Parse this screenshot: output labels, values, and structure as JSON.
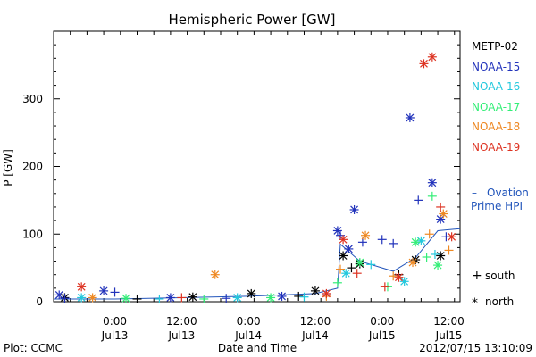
{
  "chart_data": {
    "type": "scatter",
    "title": "Hemispheric Power [GW]",
    "xlabel": "Date and Time",
    "ylabel": "P [GW]",
    "ylim": [
      0,
      400
    ],
    "xlim": [
      "2012-07-12 13:00",
      "2012-07-15 14:00"
    ],
    "y_ticks": [
      0,
      100,
      200,
      300
    ],
    "x_ticks": [
      {
        "time": "2012-07-13 00:00",
        "label1": "0:00",
        "label2": "Jul13"
      },
      {
        "time": "2012-07-13 12:00",
        "label1": "12:00",
        "label2": "Jul13"
      },
      {
        "time": "2012-07-14 00:00",
        "label1": "0:00",
        "label2": "Jul14"
      },
      {
        "time": "2012-07-14 12:00",
        "label1": "12:00",
        "label2": "Jul14"
      },
      {
        "time": "2012-07-15 00:00",
        "label1": "0:00",
        "label2": "Jul15"
      },
      {
        "time": "2012-07-15 12:00",
        "label1": "12:00",
        "label2": "Jul15"
      }
    ],
    "grid": false,
    "legend_position": "right",
    "series": [
      {
        "name": "METP-02",
        "color": "#000000",
        "points": [
          {
            "t": "2012-07-12 15:00",
            "y": 6,
            "h": "north"
          },
          {
            "t": "2012-07-13 04:00",
            "y": 4,
            "h": "south"
          },
          {
            "t": "2012-07-13 14:00",
            "y": 7,
            "h": "north"
          },
          {
            "t": "2012-07-14 00:30",
            "y": 12,
            "h": "north"
          },
          {
            "t": "2012-07-14 09:00",
            "y": 8,
            "h": "south"
          },
          {
            "t": "2012-07-14 12:00",
            "y": 16,
            "h": "north"
          },
          {
            "t": "2012-07-14 17:00",
            "y": 68,
            "h": "north"
          },
          {
            "t": "2012-07-14 18:30",
            "y": 50,
            "h": "south"
          },
          {
            "t": "2012-07-14 20:00",
            "y": 56,
            "h": "north"
          },
          {
            "t": "2012-07-15 03:00",
            "y": 40,
            "h": "south"
          },
          {
            "t": "2012-07-15 06:00",
            "y": 62,
            "h": "north"
          },
          {
            "t": "2012-07-15 10:30",
            "y": 68,
            "h": "north"
          }
        ]
      },
      {
        "name": "NOAA-15",
        "color": "#2233bb",
        "points": [
          {
            "t": "2012-07-12 14:00",
            "y": 10,
            "h": "north"
          },
          {
            "t": "2012-07-12 15:00",
            "y": 5,
            "h": "south"
          },
          {
            "t": "2012-07-12 22:00",
            "y": 16,
            "h": "north"
          },
          {
            "t": "2012-07-13 00:00",
            "y": 14,
            "h": "south"
          },
          {
            "t": "2012-07-13 10:00",
            "y": 6,
            "h": "north"
          },
          {
            "t": "2012-07-13 20:00",
            "y": 5,
            "h": "south"
          },
          {
            "t": "2012-07-14 06:00",
            "y": 8,
            "h": "north"
          },
          {
            "t": "2012-07-14 14:00",
            "y": 10,
            "h": "south"
          },
          {
            "t": "2012-07-14 16:00",
            "y": 105,
            "h": "north"
          },
          {
            "t": "2012-07-14 16:30",
            "y": 98,
            "h": "south"
          },
          {
            "t": "2012-07-14 18:00",
            "y": 78,
            "h": "north"
          },
          {
            "t": "2012-07-14 19:00",
            "y": 136,
            "h": "north"
          },
          {
            "t": "2012-07-14 20:30",
            "y": 88,
            "h": "south"
          },
          {
            "t": "2012-07-15 00:00",
            "y": 92,
            "h": "south"
          },
          {
            "t": "2012-07-15 02:00",
            "y": 86,
            "h": "south"
          },
          {
            "t": "2012-07-15 05:00",
            "y": 272,
            "h": "north"
          },
          {
            "t": "2012-07-15 06:30",
            "y": 150,
            "h": "south"
          },
          {
            "t": "2012-07-15 09:00",
            "y": 176,
            "h": "north"
          },
          {
            "t": "2012-07-15 10:30",
            "y": 122,
            "h": "north"
          },
          {
            "t": "2012-07-15 11:30",
            "y": 96,
            "h": "south"
          }
        ]
      },
      {
        "name": "NOAA-16",
        "color": "#22c8dd",
        "points": [
          {
            "t": "2012-07-12 18:00",
            "y": 6,
            "h": "north"
          },
          {
            "t": "2012-07-13 08:00",
            "y": 4,
            "h": "south"
          },
          {
            "t": "2012-07-13 22:00",
            "y": 6,
            "h": "north"
          },
          {
            "t": "2012-07-14 10:00",
            "y": 7,
            "h": "south"
          },
          {
            "t": "2012-07-14 17:30",
            "y": 42,
            "h": "north"
          },
          {
            "t": "2012-07-14 22:00",
            "y": 55,
            "h": "south"
          },
          {
            "t": "2012-07-15 04:00",
            "y": 30,
            "h": "north"
          },
          {
            "t": "2012-07-15 07:00",
            "y": 90,
            "h": "north"
          },
          {
            "t": "2012-07-15 09:30",
            "y": 70,
            "h": "south"
          }
        ]
      },
      {
        "name": "NOAA-17",
        "color": "#33ee77",
        "points": [
          {
            "t": "2012-07-13 02:00",
            "y": 5,
            "h": "north"
          },
          {
            "t": "2012-07-13 16:00",
            "y": 4,
            "h": "south"
          },
          {
            "t": "2012-07-14 04:00",
            "y": 6,
            "h": "north"
          },
          {
            "t": "2012-07-14 16:00",
            "y": 28,
            "h": "south"
          },
          {
            "t": "2012-07-14 20:00",
            "y": 58,
            "h": "north"
          },
          {
            "t": "2012-07-15 01:00",
            "y": 22,
            "h": "south"
          },
          {
            "t": "2012-07-15 06:00",
            "y": 88,
            "h": "north"
          },
          {
            "t": "2012-07-15 08:00",
            "y": 66,
            "h": "south"
          },
          {
            "t": "2012-07-15 09:00",
            "y": 156,
            "h": "south"
          },
          {
            "t": "2012-07-15 10:00",
            "y": 54,
            "h": "north"
          }
        ]
      },
      {
        "name": "NOAA-18",
        "color": "#ee8822",
        "points": [
          {
            "t": "2012-07-12 20:00",
            "y": 6,
            "h": "north"
          },
          {
            "t": "2012-07-13 18:00",
            "y": 40,
            "h": "north"
          },
          {
            "t": "2012-07-14 14:00",
            "y": 8,
            "h": "south"
          },
          {
            "t": "2012-07-14 16:30",
            "y": 48,
            "h": "south"
          },
          {
            "t": "2012-07-14 21:00",
            "y": 98,
            "h": "north"
          },
          {
            "t": "2012-07-15 02:00",
            "y": 38,
            "h": "south"
          },
          {
            "t": "2012-07-15 05:30",
            "y": 58,
            "h": "north"
          },
          {
            "t": "2012-07-15 08:30",
            "y": 100,
            "h": "south"
          },
          {
            "t": "2012-07-15 11:00",
            "y": 130,
            "h": "north"
          },
          {
            "t": "2012-07-15 12:00",
            "y": 76,
            "h": "south"
          }
        ]
      },
      {
        "name": "NOAA-19",
        "color": "#dd3322",
        "points": [
          {
            "t": "2012-07-12 18:00",
            "y": 22,
            "h": "north"
          },
          {
            "t": "2012-07-13 12:00",
            "y": 6,
            "h": "south"
          },
          {
            "t": "2012-07-14 14:00",
            "y": 12,
            "h": "north"
          },
          {
            "t": "2012-07-14 17:00",
            "y": 92,
            "h": "north"
          },
          {
            "t": "2012-07-14 19:30",
            "y": 42,
            "h": "south"
          },
          {
            "t": "2012-07-15 00:30",
            "y": 22,
            "h": "south"
          },
          {
            "t": "2012-07-15 03:00",
            "y": 36,
            "h": "north"
          },
          {
            "t": "2012-07-15 07:30",
            "y": 352,
            "h": "north"
          },
          {
            "t": "2012-07-15 09:00",
            "y": 362,
            "h": "north"
          },
          {
            "t": "2012-07-15 10:30",
            "y": 140,
            "h": "south"
          },
          {
            "t": "2012-07-15 12:30",
            "y": 96,
            "h": "north"
          }
        ]
      }
    ],
    "ovation": {
      "label_line1": "Ovation",
      "label_line2": "Prime HPI",
      "dash": "–",
      "color": "#2255bb",
      "points": [
        {
          "t": "2012-07-12 13:00",
          "y": 4
        },
        {
          "t": "2012-07-13 00:00",
          "y": 4
        },
        {
          "t": "2012-07-13 12:00",
          "y": 6
        },
        {
          "t": "2012-07-14 00:00",
          "y": 8
        },
        {
          "t": "2012-07-14 12:00",
          "y": 12
        },
        {
          "t": "2012-07-14 16:00",
          "y": 20
        },
        {
          "t": "2012-07-14 16:30",
          "y": 85
        },
        {
          "t": "2012-07-14 20:00",
          "y": 60
        },
        {
          "t": "2012-07-15 02:00",
          "y": 45
        },
        {
          "t": "2012-07-15 06:00",
          "y": 65
        },
        {
          "t": "2012-07-15 10:00",
          "y": 105
        },
        {
          "t": "2012-07-15 14:00",
          "y": 108
        }
      ]
    },
    "marker_legend": [
      {
        "symbol": "+",
        "label": "south"
      },
      {
        "symbol": "*",
        "label": "north"
      }
    ]
  },
  "footer": {
    "left": "Plot: CCMC",
    "center": "Date and Time",
    "right": "2012/07/15 13:10:09"
  }
}
